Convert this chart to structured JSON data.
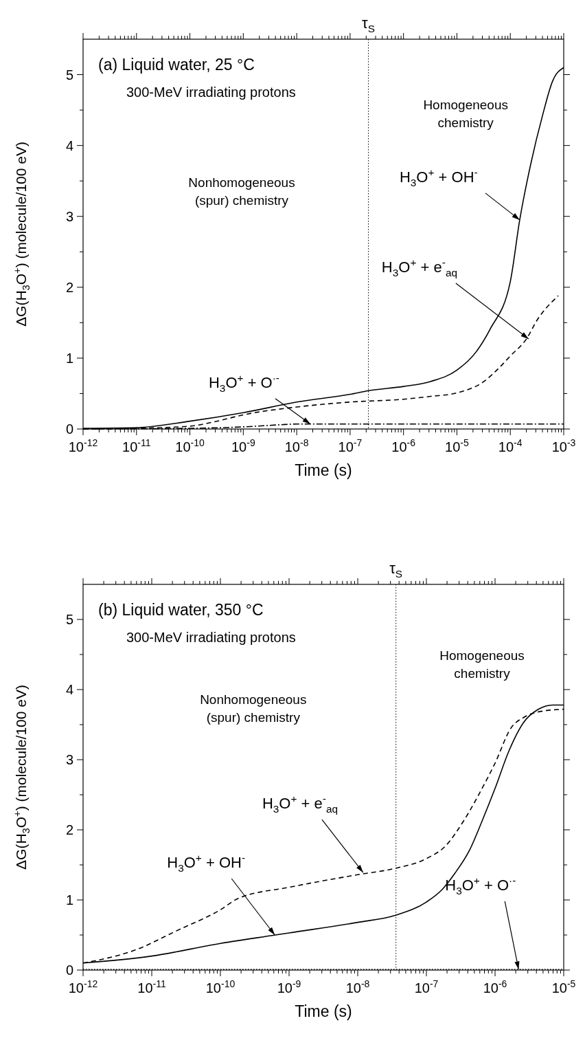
{
  "chart_data": [
    {
      "type": "line",
      "title": "(a) Liquid water, 25 °C",
      "subtitle": "300-MeV irradiating protons",
      "xlabel": "Time (s)",
      "ylabel": "ΔG(H$_{3}$O$^{+}$) (molecule/100 eV)",
      "log": "x",
      "grid": false,
      "xlim": [
        1e-12,
        0.001
      ],
      "xticks": [
        {
          "value": 1e-12,
          "label": "10$^{-12}$"
        },
        {
          "value": 1e-11,
          "label": "10$^{-11}$"
        },
        {
          "value": 1e-10,
          "label": "10$^{-10}$"
        },
        {
          "value": 1e-09,
          "label": "10$^{-9}$"
        },
        {
          "value": 1e-08,
          "label": "10$^{-8}$"
        },
        {
          "value": 1e-07,
          "label": "10$^{-7}$"
        },
        {
          "value": 1e-06,
          "label": "10$^{-6}$"
        },
        {
          "value": 1e-05,
          "label": "10$^{-5}$"
        },
        {
          "value": 0.0001,
          "label": "10$^{-4}$"
        },
        {
          "value": 0.001,
          "label": "10$^{-3}$"
        }
      ],
      "ylim": [
        0,
        5.5
      ],
      "yticks": [
        0,
        {
          "value": 0.5,
          "label": null
        },
        1,
        {
          "value": 1.5,
          "label": null
        },
        2,
        {
          "value": 2.5,
          "label": null
        },
        3,
        {
          "value": 3.5,
          "label": null
        },
        4,
        {
          "value": 4.5,
          "label": null
        },
        5
      ],
      "series": [
        {
          "color": "#000000",
          "line_style": "solid",
          "x": [
            1e-12,
            1e-11,
            1e-10,
            1e-09,
            1e-08,
            1e-07,
            2.2e-07,
            1e-06,
            3.2e-06,
            1e-05,
            2.3e-05,
            4.2e-05,
            0.0001,
            0.00015,
            0.00024,
            0.0004,
            0.00062,
            0.001
          ],
          "values": [
            0.01,
            0.02,
            0.11,
            0.23,
            0.38,
            0.49,
            0.54,
            0.6,
            0.67,
            0.83,
            1.09,
            1.41,
            2.08,
            2.95,
            3.73,
            4.42,
            4.91,
            5.1
          ]
        },
        {
          "color": "#000000",
          "line_style": "dashed",
          "x": [
            1e-12,
            1e-11,
            1e-10,
            3.2e-10,
            1e-09,
            1e-08,
            1e-07,
            1e-06,
            3.2e-06,
            1e-05,
            3.2e-05,
            6.3e-05,
            0.0001,
            0.0002,
            0.00032,
            0.00079
          ],
          "values": [
            0,
            0.01,
            0.04,
            0.11,
            0.2,
            0.31,
            0.38,
            0.42,
            0.46,
            0.51,
            0.67,
            0.87,
            1.03,
            1.27,
            1.54,
            1.88
          ]
        },
        {
          "color": "#000000",
          "line_style": "dashdot",
          "x": [
            1e-12,
            1e-10,
            1e-09,
            5e-09,
            1e-08,
            1e-07,
            0.001
          ],
          "values": [
            0,
            0.01,
            0.03,
            0.06,
            0.07,
            0.07,
            0.07
          ]
        }
      ],
      "ref_lines": [
        {
          "axis": "x",
          "value": 2.2e-07,
          "label": "τ$_{S}$",
          "line_style": "dotted"
        }
      ],
      "annotations": [
        "Nonhomogeneous\n(spur) chemistry",
        "Homogeneous\nchemistry",
        {
          "text": "H$_{3}$O$^{+}$ + OH$^{-}$",
          "x": 0.00015,
          "y": 2.95
        },
        {
          "text": "H$_{3}$O$^{+}$ + e$^{-}$$_{aq}$",
          "x": 0.00022,
          "y": 1.27
        },
        {
          "text": "H$_{3}$O$^{+}$ + O$^{·-}$",
          "x": 1.8e-08,
          "y": 0.07
        }
      ]
    },
    {
      "type": "line",
      "title": "(b) Liquid water, 350 °C",
      "subtitle": "300-MeV irradiating protons",
      "xlabel": "Time (s)",
      "ylabel": "ΔG(H$_{3}$O$^{+}$) (molecule/100 eV)",
      "log": "x",
      "grid": false,
      "xlim": [
        1e-12,
        1e-05
      ],
      "xticks": [
        {
          "value": 1e-12,
          "label": "10$^{-12}$"
        },
        {
          "value": 1e-11,
          "label": "10$^{-11}$"
        },
        {
          "value": 1e-10,
          "label": "10$^{-10}$"
        },
        {
          "value": 1e-09,
          "label": "10$^{-9}$"
        },
        {
          "value": 1e-08,
          "label": "10$^{-8}$"
        },
        {
          "value": 1e-07,
          "label": "10$^{-7}$"
        },
        {
          "value": 1e-06,
          "label": "10$^{-6}$"
        },
        {
          "value": 1e-05,
          "label": "10$^{-5}$"
        }
      ],
      "ylim": [
        0,
        5.5
      ],
      "yticks": [
        0,
        {
          "value": 0.5,
          "label": null
        },
        1,
        {
          "value": 1.5,
          "label": null
        },
        2,
        {
          "value": 2.5,
          "label": null
        },
        3,
        {
          "value": 3.5,
          "label": null
        },
        4,
        {
          "value": 4.5,
          "label": null
        },
        5
      ],
      "series": [
        {
          "color": "#000000",
          "line_style": "solid",
          "x": [
            1e-12,
            1e-11,
            1e-10,
            6.3e-10,
            1e-09,
            1e-08,
            3.5e-08,
            1e-07,
            1.7e-07,
            2.6e-07,
            4.3e-07,
            6.5e-07,
            1e-06,
            1.6e-06,
            2.6e-06,
            4.3e-06,
            6.9e-06,
            1e-05
          ],
          "values": [
            0.1,
            0.2,
            0.38,
            0.5,
            0.53,
            0.68,
            0.78,
            0.97,
            1.15,
            1.38,
            1.72,
            2.13,
            2.59,
            3.13,
            3.53,
            3.72,
            3.78,
            3.78
          ]
        },
        {
          "color": "#000000",
          "line_style": "dashed",
          "x": [
            1e-12,
            5.9e-12,
            2.3e-11,
            1e-10,
            1.8e-10,
            1e-09,
            1e-08,
            3.5e-08,
            1e-07,
            1.9e-07,
            3.5e-07,
            6.8e-07,
            1e-06,
            1.7e-06,
            2.7e-06,
            4.2e-06,
            1e-05
          ],
          "values": [
            0.1,
            0.29,
            0.56,
            0.86,
            1.02,
            1.18,
            1.36,
            1.45,
            1.59,
            1.77,
            2.13,
            2.63,
            2.95,
            3.45,
            3.61,
            3.68,
            3.72
          ]
        },
        {
          "color": "#000000",
          "line_style": "dotted",
          "x": [
            1e-12,
            1e-05
          ],
          "values": [
            0.01,
            0.01
          ]
        }
      ],
      "ref_lines": [
        {
          "axis": "x",
          "value": 3.6e-08,
          "label": "τ$_{S}$",
          "line_style": "dotted"
        }
      ],
      "annotations": [
        "Nonhomogeneous\n(spur) chemistry",
        "Homogeneous\nchemistry",
        {
          "text": "H$_{3}$O$^{+}$ + OH$^{-}$",
          "x": 6.2e-10,
          "y": 0.5
        },
        {
          "text": "H$_{3}$O$^{+}$ + e$^{-}$$_{aq}$",
          "x": 1.2e-08,
          "y": 1.39
        },
        {
          "text": "H$_{3}$O$^{+}$ + O$^{·-}$",
          "x": 2.2e-06,
          "y": 0.01
        }
      ]
    }
  ]
}
